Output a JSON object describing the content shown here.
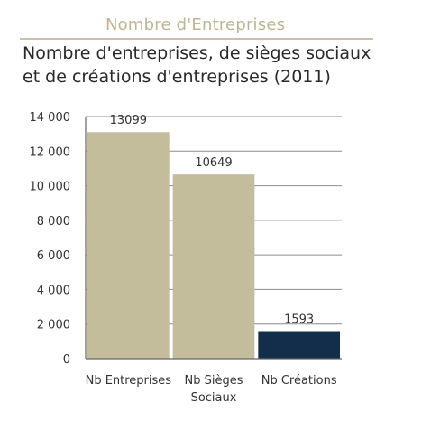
{
  "header": {
    "section_title": "Nombre d'Entreprises"
  },
  "chart_data": {
    "type": "bar",
    "title_lines": [
      "Nombre d'entreprises, de sièges sociaux",
      "et de créations d'entreprises (2011)"
    ],
    "categories": [
      [
        "Nb Entreprises"
      ],
      [
        "Nb Sièges",
        "Sociaux"
      ],
      [
        "Nb Créations"
      ]
    ],
    "values": [
      13099,
      10649,
      1593
    ],
    "value_labels": [
      "13099",
      "10649",
      "1593"
    ],
    "yticks": [
      0,
      2000,
      4000,
      6000,
      8000,
      10000,
      12000,
      14000
    ],
    "ytick_labels": [
      "0",
      "2 000",
      "4 000",
      "6 000",
      "8 000",
      "10 000",
      "12 000",
      "14 000"
    ],
    "ylim": [
      0,
      14000
    ],
    "grid": true,
    "bar_colors": [
      "#c4bd9b",
      "#c4bd9b",
      "#132e4a"
    ],
    "grid_color": "#8c8c8c",
    "text_color": "#333333"
  }
}
